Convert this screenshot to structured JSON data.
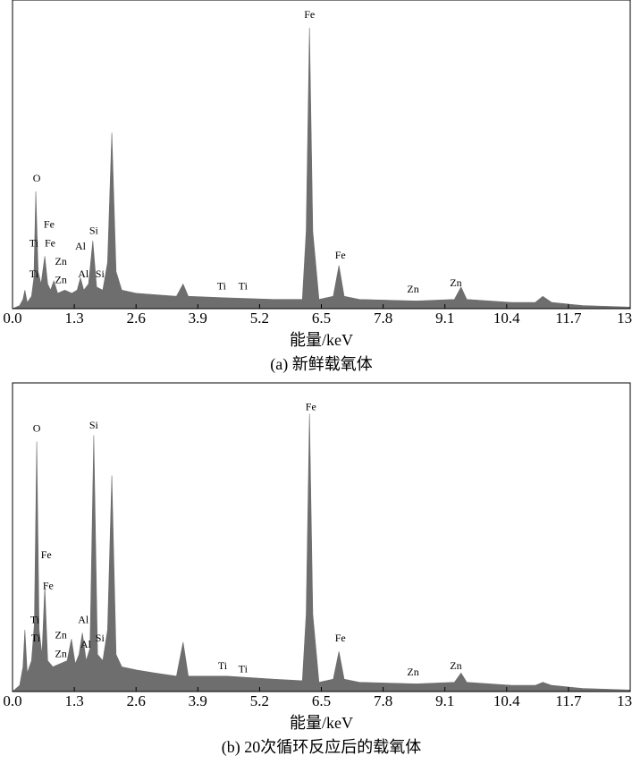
{
  "chart_data": [
    {
      "type": "area",
      "xlabel": "能量/keV",
      "caption": "(a) 新鲜载氧体",
      "color": "#6e6e6e",
      "xlim": [
        0,
        13.0
      ],
      "ylim": [
        0,
        100
      ],
      "xticks": [
        {
          "value": 0,
          "label": "0.0"
        },
        1.3,
        2.6,
        3.9,
        5.2,
        6.5,
        7.8,
        9.1,
        10.4,
        11.7,
        {
          "value": 13,
          "label": "13.0"
        }
      ],
      "x": [
        0,
        0.15,
        0.22,
        0.26,
        0.31,
        0.4,
        0.45,
        0.49,
        0.54,
        0.6,
        0.68,
        0.74,
        0.8,
        0.87,
        0.95,
        1.1,
        1.25,
        1.36,
        1.43,
        1.5,
        1.6,
        1.69,
        1.77,
        1.9,
        2.0,
        2.09,
        2.18,
        2.3,
        2.6,
        3.0,
        3.45,
        3.59,
        3.7,
        4.5,
        5.5,
        6.1,
        6.18,
        6.25,
        6.32,
        6.45,
        6.75,
        6.87,
        6.98,
        7.3,
        8.5,
        9.3,
        9.44,
        9.56,
        10.5,
        11.0,
        11.16,
        11.35,
        12.0,
        13.0
      ],
      "values": [
        0,
        1,
        3,
        6,
        2,
        4,
        10,
        38,
        12,
        8,
        17,
        8,
        6,
        9,
        5,
        6,
        5,
        6,
        10,
        6,
        8,
        22,
        7,
        6,
        15,
        57,
        12,
        6,
        5,
        4.5,
        4,
        8,
        4,
        3.5,
        3,
        3,
        25,
        91,
        25,
        3,
        4,
        14,
        4,
        3,
        2.5,
        3,
        7,
        3,
        2,
        2,
        4,
        2,
        1,
        0.5
      ],
      "annotations": [
        {
          "text": "Fe",
          "x": 6.25,
          "y": 95
        },
        {
          "text": "O",
          "x": 0.51,
          "y": 42
        },
        {
          "text": "Fe",
          "x": 0.77,
          "y": 27
        },
        {
          "text": "Ti",
          "x": 0.45,
          "y": 21
        },
        {
          "text": "Fe",
          "x": 0.79,
          "y": 21
        },
        {
          "text": "Al",
          "x": 1.43,
          "y": 20
        },
        {
          "text": "Si",
          "x": 1.71,
          "y": 25
        },
        {
          "text": "Zn",
          "x": 1.02,
          "y": 15
        },
        {
          "text": "Ti",
          "x": 0.45,
          "y": 11
        },
        {
          "text": "Zn",
          "x": 1.02,
          "y": 9
        },
        {
          "text": "Al",
          "x": 1.49,
          "y": 11
        },
        {
          "text": "Si",
          "x": 1.84,
          "y": 11
        },
        {
          "text": "Ti",
          "x": 4.4,
          "y": 7
        },
        {
          "text": "Ti",
          "x": 4.85,
          "y": 7
        },
        {
          "text": "Fe",
          "x": 6.9,
          "y": 17
        },
        {
          "text": "Zn",
          "x": 8.43,
          "y": 6
        },
        {
          "text": "Zn",
          "x": 9.33,
          "y": 8
        }
      ]
    },
    {
      "type": "area",
      "xlabel": "能量/keV",
      "caption": "(b) 20次循环反应后的载氧体",
      "color": "#6e6e6e",
      "xlim": [
        0,
        13.0
      ],
      "ylim": [
        0,
        100
      ],
      "xticks": [
        {
          "value": 0,
          "label": "0.0"
        },
        1.3,
        2.6,
        3.9,
        5.2,
        6.5,
        7.8,
        9.1,
        10.4,
        11.7,
        {
          "value": 13,
          "label": "13.0"
        }
      ],
      "x": [
        0,
        0.15,
        0.22,
        0.26,
        0.31,
        0.4,
        0.46,
        0.51,
        0.56,
        0.62,
        0.68,
        0.74,
        0.85,
        1.0,
        1.15,
        1.24,
        1.32,
        1.4,
        1.47,
        1.55,
        1.63,
        1.71,
        1.79,
        1.9,
        2.0,
        2.09,
        2.18,
        2.3,
        2.6,
        3.0,
        3.45,
        3.59,
        3.7,
        4.5,
        5.5,
        6.1,
        6.18,
        6.25,
        6.32,
        6.45,
        6.75,
        6.87,
        6.98,
        7.3,
        8.5,
        9.3,
        9.44,
        9.56,
        10.5,
        11.0,
        11.16,
        11.35,
        12.0,
        13.0
      ],
      "values": [
        0,
        2,
        8,
        20,
        6,
        10,
        22,
        81,
        20,
        12,
        34,
        10,
        8,
        9,
        10,
        17,
        9,
        12,
        19,
        10,
        14,
        83,
        12,
        10,
        20,
        70,
        12,
        8,
        7,
        6,
        5,
        16,
        5,
        5,
        4,
        3.5,
        25,
        90,
        25,
        3,
        4,
        13,
        4,
        3,
        2.5,
        3,
        6,
        3,
        2,
        2,
        3,
        2,
        1,
        0.5
      ],
      "annotations": [
        {
          "text": "Fe",
          "x": 6.28,
          "y": 92
        },
        {
          "text": "O",
          "x": 0.51,
          "y": 85
        },
        {
          "text": "Si",
          "x": 1.71,
          "y": 86
        },
        {
          "text": "Fe",
          "x": 0.71,
          "y": 44
        },
        {
          "text": "Fe",
          "x": 0.75,
          "y": 34
        },
        {
          "text": "Ti",
          "x": 0.47,
          "y": 23
        },
        {
          "text": "Al",
          "x": 1.49,
          "y": 23
        },
        {
          "text": "Ti",
          "x": 0.49,
          "y": 17
        },
        {
          "text": "Zn",
          "x": 1.02,
          "y": 18
        },
        {
          "text": "Zn",
          "x": 1.02,
          "y": 12
        },
        {
          "text": "Al",
          "x": 1.54,
          "y": 15
        },
        {
          "text": "Si",
          "x": 1.84,
          "y": 17
        },
        {
          "text": "Ti",
          "x": 4.42,
          "y": 8
        },
        {
          "text": "Ti",
          "x": 4.85,
          "y": 7
        },
        {
          "text": "Fe",
          "x": 6.9,
          "y": 17
        },
        {
          "text": "Zn",
          "x": 8.43,
          "y": 6
        },
        {
          "text": "Zn",
          "x": 9.33,
          "y": 8
        }
      ]
    }
  ]
}
